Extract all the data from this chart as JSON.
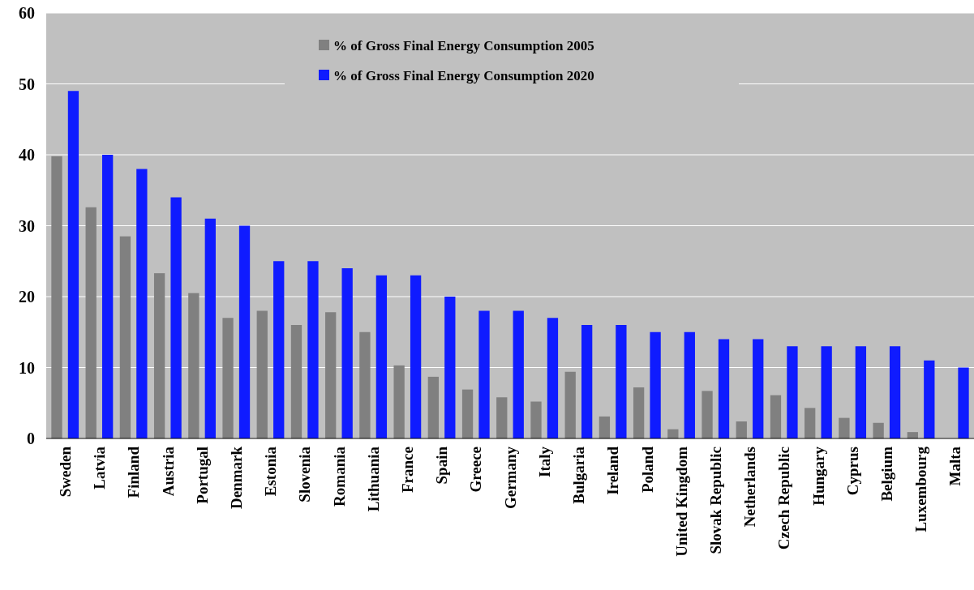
{
  "chart_data": {
    "type": "bar",
    "categories": [
      "Sweden",
      "Latvia",
      "Finland",
      "Austria",
      "Portugal",
      "Denmark",
      "Estonia",
      "Slovenia",
      "Romania",
      "Lithuania",
      "France",
      "Spain",
      "Greece",
      "Germany",
      "Italy",
      "Bulgaria",
      "Ireland",
      "Poland",
      "United Kingdom",
      "Slovak Republic",
      "Netherlands",
      "Czech Republic",
      "Hungary",
      "Cyprus",
      "Belgium",
      "Luxembourg",
      "Malta"
    ],
    "series": [
      {
        "name": "% of Gross Final Energy Consumption 2005",
        "color": "#808080",
        "values": [
          39.8,
          32.6,
          28.5,
          23.3,
          20.5,
          17.0,
          18.0,
          16.0,
          17.8,
          15.0,
          10.3,
          8.7,
          6.9,
          5.8,
          5.2,
          9.4,
          3.1,
          7.2,
          1.3,
          6.7,
          2.4,
          6.1,
          4.3,
          2.9,
          2.2,
          0.9,
          0
        ]
      },
      {
        "name": "% of Gross Final Energy Consumption 2020",
        "color": "#0f1bff",
        "values": [
          49,
          40,
          38,
          34,
          31,
          30,
          25,
          25,
          24,
          23,
          23,
          20,
          18,
          18,
          17,
          16,
          16,
          15,
          15,
          14,
          14,
          13,
          13,
          13,
          13,
          11,
          10
        ]
      }
    ],
    "ylim": [
      0,
      60
    ],
    "yticks": [
      0,
      10,
      20,
      30,
      40,
      50,
      60
    ],
    "grid": "y",
    "legend": "top"
  }
}
